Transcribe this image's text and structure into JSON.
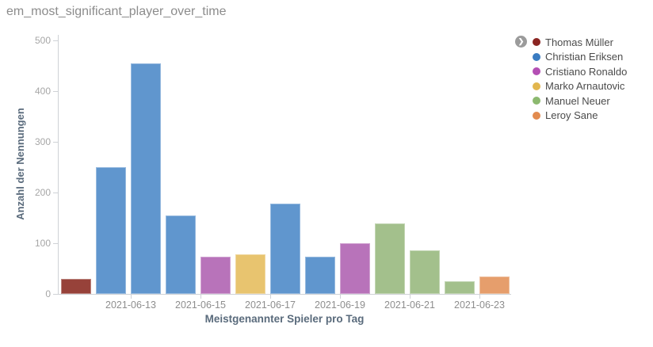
{
  "header": {
    "title": "em_most_significant_player_over_time"
  },
  "chart_data": {
    "type": "bar",
    "title": "em_most_significant_player_over_time",
    "xlabel": "Meistgenannter Spieler pro Tag",
    "ylabel": "Anzahl der Nennungen",
    "ylim": [
      0,
      500
    ],
    "y_ticks": [
      0,
      100,
      200,
      300,
      400,
      500
    ],
    "x_tick_labels": [
      "2021-06-13",
      "2021-06-15",
      "2021-06-17",
      "2021-06-19",
      "2021-06-21",
      "2021-06-23"
    ],
    "grid": false,
    "legend_position": "right",
    "categories": [
      "2021-06-11",
      "2021-06-12",
      "2021-06-13",
      "2021-06-14",
      "2021-06-15",
      "2021-06-16",
      "2021-06-17",
      "2021-06-18",
      "2021-06-19",
      "2021-06-20",
      "2021-06-21",
      "2021-06-22",
      "2021-06-23"
    ],
    "bars": [
      {
        "date": "2021-06-11",
        "player": "Thomas Müller",
        "value": 30
      },
      {
        "date": "2021-06-12",
        "player": "Christian Eriksen",
        "value": 250
      },
      {
        "date": "2021-06-13",
        "player": "Christian Eriksen",
        "value": 455
      },
      {
        "date": "2021-06-14",
        "player": "Christian Eriksen",
        "value": 155
      },
      {
        "date": "2021-06-15",
        "player": "Cristiano Ronaldo",
        "value": 74
      },
      {
        "date": "2021-06-16",
        "player": "Marko Arnautovic",
        "value": 78
      },
      {
        "date": "2021-06-17",
        "player": "Christian Eriksen",
        "value": 178
      },
      {
        "date": "2021-06-18",
        "player": "Christian Eriksen",
        "value": 74
      },
      {
        "date": "2021-06-19",
        "player": "Cristiano Ronaldo",
        "value": 100
      },
      {
        "date": "2021-06-20",
        "player": "Manuel Neuer",
        "value": 139
      },
      {
        "date": "2021-06-21",
        "player": "Manuel Neuer",
        "value": 86
      },
      {
        "date": "2021-06-22",
        "player": "Manuel Neuer",
        "value": 25
      },
      {
        "date": "2021-06-23",
        "player": "Leroy Sane",
        "value": 34
      }
    ],
    "legend": [
      {
        "label": "Thomas Müller",
        "dot_color": "#8b2522",
        "bar_color": "#97423a"
      },
      {
        "label": "Christian Eriksen",
        "dot_color": "#3a7cc2",
        "bar_color": "#6096ce"
      },
      {
        "label": "Cristiano Ronaldo",
        "dot_color": "#b44fb4",
        "bar_color": "#b873ba"
      },
      {
        "label": "Marko Arnautovic",
        "dot_color": "#e2b64e",
        "bar_color": "#e8c46f"
      },
      {
        "label": "Manuel Neuer",
        "dot_color": "#8cb96f",
        "bar_color": "#a3c08c"
      },
      {
        "label": "Leroy Sane",
        "dot_color": "#e28b4f",
        "bar_color": "#e69e6c"
      }
    ]
  },
  "legend_control": {
    "scroll_icon_glyph": "❯"
  }
}
